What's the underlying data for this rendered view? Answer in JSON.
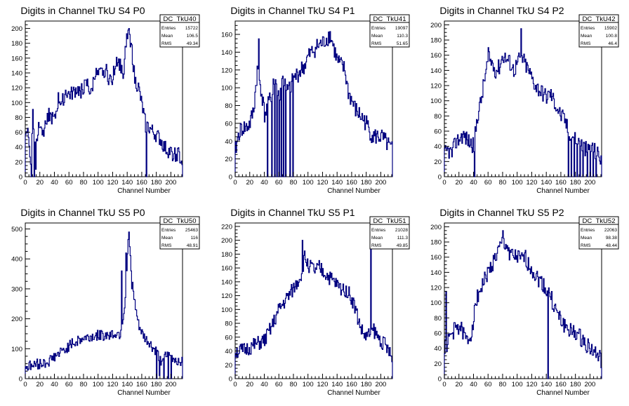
{
  "chart_data": [
    {
      "type": "histogram",
      "title": "Digits in Channel TkU S4 P0",
      "xlabel": "Channel Number",
      "ylabel": "",
      "xlim": [
        0,
        216
      ],
      "ylim": [
        0,
        210
      ],
      "xticks": [
        0,
        20,
        40,
        60,
        80,
        100,
        120,
        140,
        160,
        180,
        200
      ],
      "yticks": [
        20,
        40,
        60,
        80,
        100,
        120,
        140,
        160,
        180,
        200
      ],
      "stats": {
        "name": "DC_TkU40",
        "entries": "15722",
        "mean": "106.5",
        "rms": "49.34"
      },
      "anchors": [
        [
          0,
          64
        ],
        [
          3,
          62
        ],
        [
          6,
          30
        ],
        [
          8,
          20
        ],
        [
          10,
          95
        ],
        [
          12,
          30
        ],
        [
          14,
          60
        ],
        [
          16,
          50
        ],
        [
          18,
          70
        ],
        [
          20,
          75
        ],
        [
          25,
          60
        ],
        [
          30,
          85
        ],
        [
          35,
          80
        ],
        [
          40,
          75
        ],
        [
          45,
          105
        ],
        [
          50,
          100
        ],
        [
          55,
          115
        ],
        [
          60,
          110
        ],
        [
          65,
          112
        ],
        [
          70,
          118
        ],
        [
          75,
          115
        ],
        [
          80,
          120
        ],
        [
          85,
          125
        ],
        [
          90,
          110
        ],
        [
          95,
          140
        ],
        [
          100,
          135
        ],
        [
          105,
          140
        ],
        [
          110,
          145
        ],
        [
          115,
          130
        ],
        [
          120,
          135
        ],
        [
          125,
          160
        ],
        [
          130,
          150
        ],
        [
          135,
          140
        ],
        [
          138,
          180
        ],
        [
          142,
          200
        ],
        [
          146,
          170
        ],
        [
          150,
          130
        ],
        [
          155,
          120
        ],
        [
          160,
          95
        ],
        [
          165,
          70
        ],
        [
          170,
          65
        ],
        [
          175,
          60
        ],
        [
          180,
          55
        ],
        [
          185,
          50
        ],
        [
          190,
          40
        ],
        [
          195,
          35
        ],
        [
          200,
          32
        ],
        [
          205,
          30
        ],
        [
          210,
          30
        ],
        [
          214,
          20
        ],
        [
          216,
          20
        ]
      ],
      "noise": 10,
      "seed": 40,
      "spikes_down": [
        [
          8,
          0
        ],
        [
          12,
          0
        ],
        [
          14,
          10
        ],
        [
          166,
          0
        ]
      ],
      "spikes_up": [
        [
          142,
          200
        ],
        [
          138,
          175
        ]
      ]
    },
    {
      "type": "histogram",
      "title": "Digits in Channel TkU S4 P1",
      "xlabel": "Channel Number",
      "ylabel": "",
      "xlim": [
        0,
        216
      ],
      "ylim": [
        0,
        175
      ],
      "xticks": [
        0,
        20,
        40,
        60,
        80,
        100,
        120,
        140,
        160,
        180,
        200
      ],
      "yticks": [
        20,
        40,
        60,
        80,
        100,
        120,
        140,
        160
      ],
      "stats": {
        "name": "DC_TkU41",
        "entries": "19097",
        "mean": "110.3",
        "rms": "51.65"
      },
      "anchors": [
        [
          0,
          30
        ],
        [
          5,
          50
        ],
        [
          10,
          55
        ],
        [
          15,
          55
        ],
        [
          20,
          60
        ],
        [
          25,
          75
        ],
        [
          30,
          120
        ],
        [
          35,
          100
        ],
        [
          40,
          70
        ],
        [
          45,
          80
        ],
        [
          50,
          95
        ],
        [
          55,
          110
        ],
        [
          60,
          90
        ],
        [
          65,
          110
        ],
        [
          70,
          95
        ],
        [
          75,
          100
        ],
        [
          80,
          110
        ],
        [
          85,
          115
        ],
        [
          90,
          120
        ],
        [
          95,
          125
        ],
        [
          100,
          135
        ],
        [
          105,
          140
        ],
        [
          110,
          145
        ],
        [
          115,
          148
        ],
        [
          120,
          150
        ],
        [
          125,
          155
        ],
        [
          130,
          160
        ],
        [
          135,
          145
        ],
        [
          140,
          130
        ],
        [
          145,
          125
        ],
        [
          150,
          120
        ],
        [
          155,
          95
        ],
        [
          160,
          85
        ],
        [
          165,
          75
        ],
        [
          170,
          70
        ],
        [
          175,
          65
        ],
        [
          180,
          60
        ],
        [
          185,
          50
        ],
        [
          190,
          45
        ],
        [
          195,
          45
        ],
        [
          200,
          45
        ],
        [
          205,
          40
        ],
        [
          210,
          35
        ],
        [
          214,
          30
        ],
        [
          216,
          30
        ]
      ],
      "noise": 10,
      "seed": 41,
      "spikes_down": [
        [
          44,
          0
        ],
        [
          50,
          0
        ],
        [
          54,
          0
        ],
        [
          57,
          0
        ],
        [
          60,
          0
        ],
        [
          63,
          0
        ],
        [
          66,
          0
        ],
        [
          69,
          0
        ],
        [
          75,
          0
        ],
        [
          79,
          0
        ]
      ],
      "spikes_up": [
        [
          32,
          155
        ],
        [
          52,
          110
        ],
        [
          68,
          110
        ]
      ]
    },
    {
      "type": "histogram",
      "title": "Digits in Channel TkU S4 P2",
      "xlabel": "Channel Number",
      "ylabel": "",
      "xlim": [
        0,
        216
      ],
      "ylim": [
        0,
        205
      ],
      "xticks": [
        0,
        20,
        40,
        60,
        80,
        100,
        120,
        140,
        160,
        180,
        200
      ],
      "yticks": [
        20,
        40,
        60,
        80,
        100,
        120,
        140,
        160,
        180,
        200
      ],
      "stats": {
        "name": "DC_TkU42",
        "entries": "15902",
        "mean": "100.8",
        "rms": "46.4"
      },
      "anchors": [
        [
          0,
          30
        ],
        [
          5,
          35
        ],
        [
          10,
          30
        ],
        [
          15,
          45
        ],
        [
          20,
          50
        ],
        [
          25,
          55
        ],
        [
          30,
          50
        ],
        [
          35,
          45
        ],
        [
          40,
          40
        ],
        [
          45,
          80
        ],
        [
          50,
          100
        ],
        [
          55,
          130
        ],
        [
          60,
          155
        ],
        [
          65,
          150
        ],
        [
          70,
          140
        ],
        [
          75,
          145
        ],
        [
          80,
          160
        ],
        [
          85,
          155
        ],
        [
          90,
          150
        ],
        [
          95,
          140
        ],
        [
          100,
          150
        ],
        [
          105,
          160
        ],
        [
          110,
          150
        ],
        [
          115,
          140
        ],
        [
          120,
          130
        ],
        [
          125,
          120
        ],
        [
          130,
          115
        ],
        [
          135,
          110
        ],
        [
          140,
          105
        ],
        [
          145,
          110
        ],
        [
          150,
          100
        ],
        [
          155,
          90
        ],
        [
          160,
          80
        ],
        [
          165,
          75
        ],
        [
          170,
          60
        ],
        [
          175,
          55
        ],
        [
          180,
          50
        ],
        [
          185,
          45
        ],
        [
          190,
          40
        ],
        [
          195,
          35
        ],
        [
          200,
          40
        ],
        [
          205,
          35
        ],
        [
          210,
          30
        ],
        [
          214,
          25
        ],
        [
          216,
          25
        ]
      ],
      "noise": 11,
      "seed": 42,
      "spikes_down": [
        [
          41,
          0
        ],
        [
          170,
          0
        ],
        [
          174,
          0
        ],
        [
          178,
          0
        ],
        [
          182,
          0
        ],
        [
          186,
          0
        ],
        [
          190,
          0
        ],
        [
          196,
          0
        ],
        [
          200,
          0
        ],
        [
          204,
          0
        ],
        [
          208,
          0
        ]
      ],
      "spikes_up": [
        [
          105,
          195
        ],
        [
          60,
          170
        ]
      ]
    },
    {
      "type": "histogram",
      "title": "Digits in Channel TkU S5 P0",
      "xlabel": "Channel Number",
      "ylabel": "",
      "xlim": [
        0,
        216
      ],
      "ylim": [
        0,
        520
      ],
      "xticks": [
        0,
        20,
        40,
        60,
        80,
        100,
        120,
        140,
        160,
        180,
        200
      ],
      "yticks": [
        100,
        200,
        300,
        400,
        500
      ],
      "stats": {
        "name": "DC_TkU50",
        "entries": "25463",
        "mean": "116",
        "rms": "48.91"
      },
      "anchors": [
        [
          0,
          40
        ],
        [
          10,
          45
        ],
        [
          20,
          50
        ],
        [
          30,
          55
        ],
        [
          40,
          75
        ],
        [
          50,
          90
        ],
        [
          60,
          110
        ],
        [
          70,
          125
        ],
        [
          80,
          135
        ],
        [
          90,
          140
        ],
        [
          100,
          145
        ],
        [
          110,
          145
        ],
        [
          120,
          150
        ],
        [
          130,
          150
        ],
        [
          135,
          220
        ],
        [
          138,
          300
        ],
        [
          140,
          420
        ],
        [
          142,
          480
        ],
        [
          145,
          350
        ],
        [
          150,
          250
        ],
        [
          155,
          180
        ],
        [
          160,
          150
        ],
        [
          165,
          130
        ],
        [
          170,
          120
        ],
        [
          175,
          100
        ],
        [
          180,
          90
        ],
        [
          185,
          60
        ],
        [
          190,
          70
        ],
        [
          195,
          75
        ],
        [
          200,
          70
        ],
        [
          205,
          65
        ],
        [
          210,
          60
        ],
        [
          216,
          60
        ]
      ],
      "noise": 18,
      "seed": 50,
      "spikes_down": [
        [
          180,
          0
        ],
        [
          184,
          10
        ],
        [
          190,
          0
        ],
        [
          196,
          0
        ],
        [
          200,
          0
        ]
      ],
      "spikes_up": [
        [
          142,
          490
        ],
        [
          138,
          420
        ],
        [
          132,
          360
        ],
        [
          146,
          300
        ]
      ]
    },
    {
      "type": "histogram",
      "title": "Digits in Channel TkU S5 P1",
      "xlabel": "Channel Number",
      "ylabel": "",
      "xlim": [
        0,
        216
      ],
      "ylim": [
        0,
        225
      ],
      "xticks": [
        0,
        20,
        40,
        60,
        80,
        100,
        120,
        140,
        160,
        180,
        200
      ],
      "yticks": [
        20,
        40,
        60,
        80,
        100,
        120,
        140,
        160,
        180,
        200,
        220
      ],
      "stats": {
        "name": "DC_TkU51",
        "entries": "21028",
        "mean": "111.3",
        "rms": "49.85"
      },
      "anchors": [
        [
          0,
          40
        ],
        [
          10,
          40
        ],
        [
          20,
          45
        ],
        [
          30,
          50
        ],
        [
          40,
          55
        ],
        [
          50,
          75
        ],
        [
          60,
          100
        ],
        [
          70,
          115
        ],
        [
          80,
          130
        ],
        [
          90,
          150
        ],
        [
          95,
          175
        ],
        [
          100,
          165
        ],
        [
          105,
          160
        ],
        [
          110,
          155
        ],
        [
          115,
          160
        ],
        [
          120,
          155
        ],
        [
          125,
          150
        ],
        [
          130,
          145
        ],
        [
          135,
          140
        ],
        [
          140,
          135
        ],
        [
          145,
          130
        ],
        [
          150,
          130
        ],
        [
          155,
          125
        ],
        [
          160,
          115
        ],
        [
          165,
          100
        ],
        [
          170,
          80
        ],
        [
          175,
          65
        ],
        [
          180,
          60
        ],
        [
          185,
          65
        ],
        [
          190,
          70
        ],
        [
          195,
          60
        ],
        [
          200,
          55
        ],
        [
          205,
          50
        ],
        [
          210,
          40
        ],
        [
          214,
          30
        ],
        [
          216,
          20
        ]
      ],
      "noise": 11,
      "seed": 51,
      "spikes_down": [],
      "spikes_up": [
        [
          186,
          190
        ],
        [
          92,
          200
        ]
      ]
    },
    {
      "type": "histogram",
      "title": "Digits in Channel TkU S5 P2",
      "xlabel": "Channel Number",
      "ylabel": "",
      "xlim": [
        0,
        216
      ],
      "ylim": [
        0,
        205
      ],
      "xticks": [
        0,
        20,
        40,
        60,
        80,
        100,
        120,
        140,
        160,
        180,
        200
      ],
      "yticks": [
        20,
        40,
        60,
        80,
        100,
        120,
        140,
        160,
        180,
        200
      ],
      "stats": {
        "name": "DC_TkU52",
        "entries": "22063",
        "mean": "98.38",
        "rms": "48.44"
      },
      "anchors": [
        [
          0,
          40
        ],
        [
          5,
          50
        ],
        [
          10,
          60
        ],
        [
          15,
          65
        ],
        [
          20,
          70
        ],
        [
          25,
          60
        ],
        [
          30,
          50
        ],
        [
          35,
          55
        ],
        [
          40,
          80
        ],
        [
          45,
          110
        ],
        [
          50,
          120
        ],
        [
          55,
          130
        ],
        [
          60,
          140
        ],
        [
          65,
          150
        ],
        [
          70,
          160
        ],
        [
          75,
          170
        ],
        [
          80,
          180
        ],
        [
          85,
          175
        ],
        [
          90,
          165
        ],
        [
          95,
          160
        ],
        [
          100,
          160
        ],
        [
          105,
          155
        ],
        [
          110,
          160
        ],
        [
          115,
          150
        ],
        [
          120,
          145
        ],
        [
          125,
          135
        ],
        [
          130,
          130
        ],
        [
          135,
          125
        ],
        [
          140,
          115
        ],
        [
          145,
          110
        ],
        [
          150,
          95
        ],
        [
          155,
          85
        ],
        [
          160,
          75
        ],
        [
          165,
          70
        ],
        [
          170,
          65
        ],
        [
          175,
          60
        ],
        [
          180,
          60
        ],
        [
          185,
          55
        ],
        [
          190,
          50
        ],
        [
          195,
          45
        ],
        [
          200,
          40
        ],
        [
          205,
          35
        ],
        [
          210,
          30
        ],
        [
          214,
          25
        ],
        [
          216,
          20
        ]
      ],
      "noise": 11,
      "seed": 52,
      "spikes_down": [
        [
          142,
          0
        ]
      ],
      "spikes_up": [
        [
          80,
          195
        ],
        [
          2,
          115
        ]
      ]
    }
  ]
}
